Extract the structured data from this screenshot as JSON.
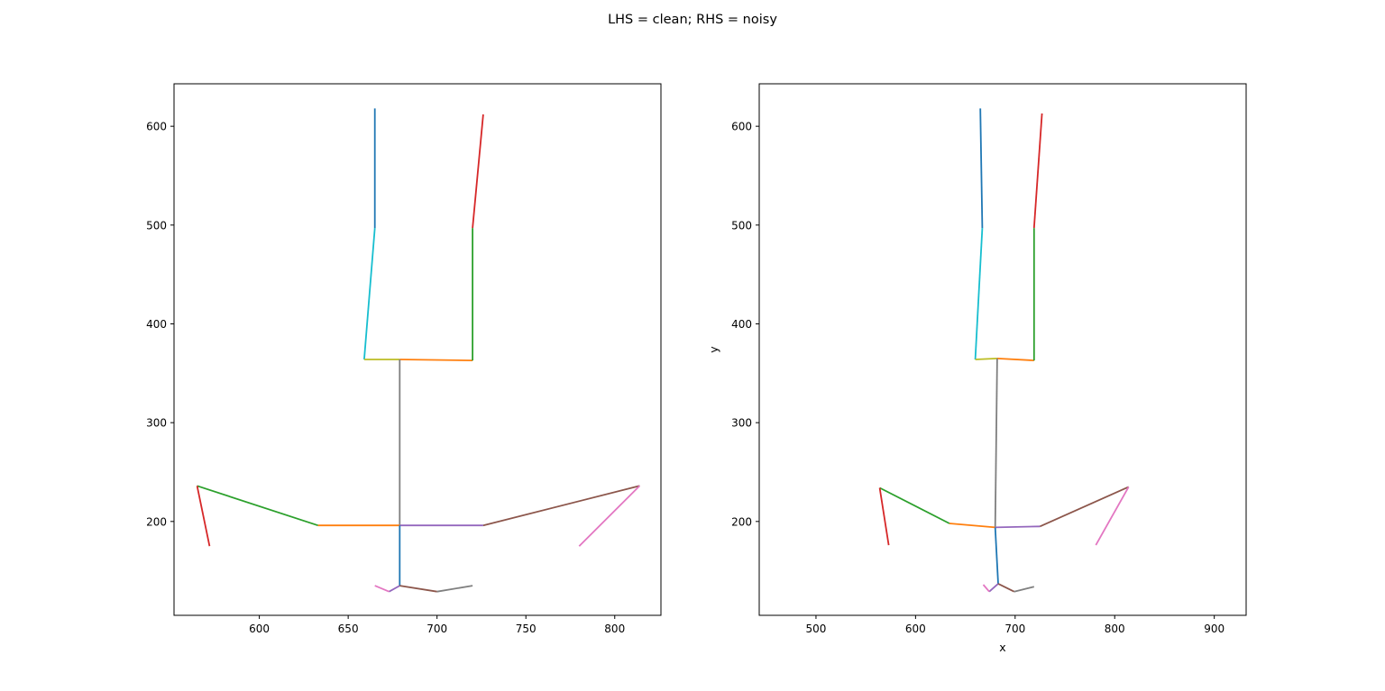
{
  "figure": {
    "suptitle": "LHS = clean; RHS = noisy"
  },
  "chart_data": [
    {
      "type": "line",
      "name_hint": "left",
      "xlabel": "",
      "ylabel": "",
      "xlim": [
        552,
        826
      ],
      "ylim": [
        105,
        643
      ],
      "xticks": [
        600,
        650,
        700,
        750,
        800
      ],
      "yticks": [
        200,
        300,
        400,
        500,
        600
      ],
      "grid": false,
      "segments": [
        {
          "x": [
            665,
            665
          ],
          "y": [
            618,
            497
          ],
          "color": "#1f77b4"
        },
        {
          "x": [
            665,
            659
          ],
          "y": [
            497,
            364
          ],
          "color": "#17becf"
        },
        {
          "x": [
            659,
            679
          ],
          "y": [
            364,
            364
          ],
          "color": "#bcbd22"
        },
        {
          "x": [
            679,
            720
          ],
          "y": [
            364,
            363
          ],
          "color": "#ff7f0e"
        },
        {
          "x": [
            720,
            720
          ],
          "y": [
            363,
            497
          ],
          "color": "#2ca02c"
        },
        {
          "x": [
            720,
            726
          ],
          "y": [
            497,
            612
          ],
          "color": "#d62728"
        },
        {
          "x": [
            679,
            679
          ],
          "y": [
            364,
            196
          ],
          "color": "#7f7f7f"
        },
        {
          "x": [
            679,
            633
          ],
          "y": [
            196,
            196
          ],
          "color": "#ff7f0e"
        },
        {
          "x": [
            633,
            565
          ],
          "y": [
            196,
            236
          ],
          "color": "#2ca02c"
        },
        {
          "x": [
            565,
            572
          ],
          "y": [
            236,
            175
          ],
          "color": "#d62728"
        },
        {
          "x": [
            679,
            726
          ],
          "y": [
            196,
            196
          ],
          "color": "#9467bd"
        },
        {
          "x": [
            726,
            814
          ],
          "y": [
            196,
            236
          ],
          "color": "#8c564b"
        },
        {
          "x": [
            814,
            780
          ],
          "y": [
            236,
            175
          ],
          "color": "#e377c2"
        },
        {
          "x": [
            679,
            679
          ],
          "y": [
            196,
            135
          ],
          "color": "#1f77b4"
        },
        {
          "x": [
            679,
            673
          ],
          "y": [
            135,
            129
          ],
          "color": "#9467bd"
        },
        {
          "x": [
            673,
            665
          ],
          "y": [
            129,
            135
          ],
          "color": "#e377c2"
        },
        {
          "x": [
            679,
            700
          ],
          "y": [
            135,
            129
          ],
          "color": "#8c564b"
        },
        {
          "x": [
            700,
            720
          ],
          "y": [
            129,
            135
          ],
          "color": "#7f7f7f"
        }
      ]
    },
    {
      "type": "line",
      "name_hint": "right",
      "xlabel": "x",
      "ylabel": "y",
      "xlim": [
        443,
        932
      ],
      "ylim": [
        105,
        643
      ],
      "xticks": [
        500,
        600,
        700,
        800,
        900
      ],
      "yticks": [
        200,
        300,
        400,
        500,
        600
      ],
      "grid": false,
      "segments": [
        {
          "x": [
            665,
            667
          ],
          "y": [
            618,
            497
          ],
          "color": "#1f77b4"
        },
        {
          "x": [
            667,
            660
          ],
          "y": [
            497,
            364
          ],
          "color": "#17becf"
        },
        {
          "x": [
            660,
            682
          ],
          "y": [
            364,
            365
          ],
          "color": "#bcbd22"
        },
        {
          "x": [
            682,
            719
          ],
          "y": [
            365,
            363
          ],
          "color": "#ff7f0e"
        },
        {
          "x": [
            719,
            719
          ],
          "y": [
            363,
            497
          ],
          "color": "#2ca02c"
        },
        {
          "x": [
            719,
            727
          ],
          "y": [
            497,
            613
          ],
          "color": "#d62728"
        },
        {
          "x": [
            682,
            680
          ],
          "y": [
            365,
            194
          ],
          "color": "#7f7f7f"
        },
        {
          "x": [
            680,
            634
          ],
          "y": [
            194,
            198
          ],
          "color": "#ff7f0e"
        },
        {
          "x": [
            634,
            564
          ],
          "y": [
            198,
            234
          ],
          "color": "#2ca02c"
        },
        {
          "x": [
            564,
            573
          ],
          "y": [
            234,
            176
          ],
          "color": "#d62728"
        },
        {
          "x": [
            680,
            725
          ],
          "y": [
            194,
            195
          ],
          "color": "#9467bd"
        },
        {
          "x": [
            725,
            814
          ],
          "y": [
            195,
            235
          ],
          "color": "#8c564b"
        },
        {
          "x": [
            814,
            781
          ],
          "y": [
            235,
            176
          ],
          "color": "#e377c2"
        },
        {
          "x": [
            680,
            683
          ],
          "y": [
            194,
            137
          ],
          "color": "#1f77b4"
        },
        {
          "x": [
            683,
            674
          ],
          "y": [
            137,
            129
          ],
          "color": "#9467bd"
        },
        {
          "x": [
            674,
            668
          ],
          "y": [
            129,
            136
          ],
          "color": "#e377c2"
        },
        {
          "x": [
            683,
            699
          ],
          "y": [
            137,
            129
          ],
          "color": "#8c564b"
        },
        {
          "x": [
            699,
            719
          ],
          "y": [
            129,
            134
          ],
          "color": "#7f7f7f"
        }
      ]
    }
  ]
}
